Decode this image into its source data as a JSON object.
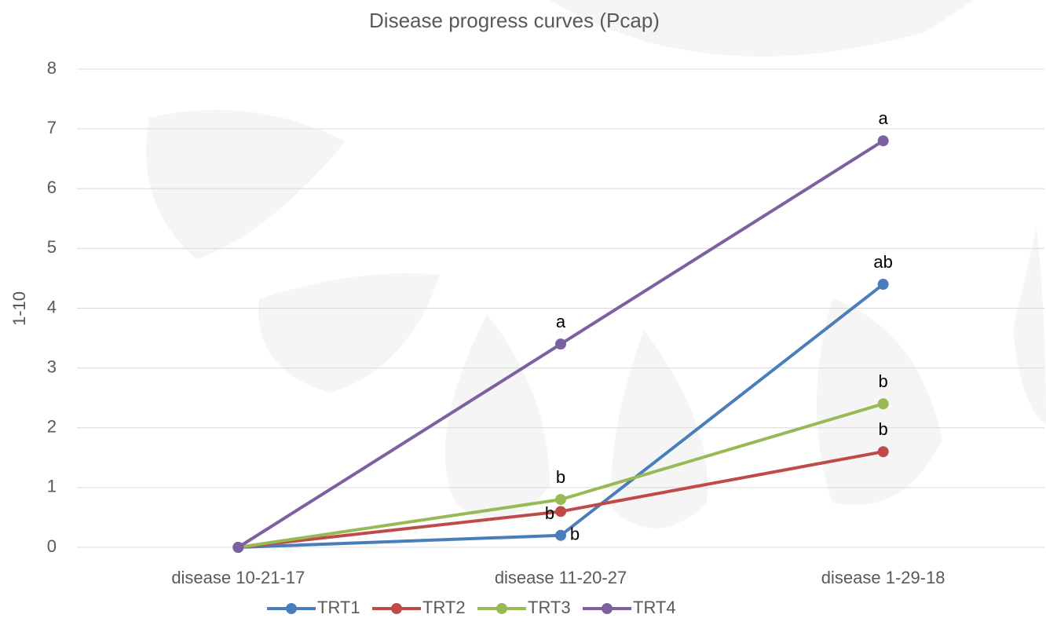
{
  "chart_data": {
    "type": "line",
    "title": "Disease progress curves (Pcap)",
    "y_label": "1-10",
    "categories": [
      "disease 10-21-17",
      "disease 11-20-27",
      "disease 1-29-18"
    ],
    "series": [
      {
        "name": "TRT1",
        "color": "#4a7ebb",
        "values": [
          0,
          0.2,
          4.4
        ],
        "letters": [
          null,
          "b",
          "ab"
        ]
      },
      {
        "name": "TRT2",
        "color": "#be4b48",
        "values": [
          0,
          0.6,
          1.6
        ],
        "letters": [
          null,
          "b",
          "b"
        ]
      },
      {
        "name": "TRT3",
        "color": "#98b954",
        "values": [
          0,
          0.8,
          2.4
        ],
        "letters": [
          null,
          "b",
          "b"
        ]
      },
      {
        "name": "TRT4",
        "color": "#7d60a0",
        "values": [
          0,
          3.4,
          6.8
        ],
        "letters": [
          null,
          "a",
          "a"
        ]
      }
    ],
    "ylim": [
      0,
      8
    ],
    "yticks": [
      0,
      1,
      2,
      3,
      4,
      5,
      6,
      7,
      8
    ],
    "grid": true,
    "legend": "bottom"
  }
}
